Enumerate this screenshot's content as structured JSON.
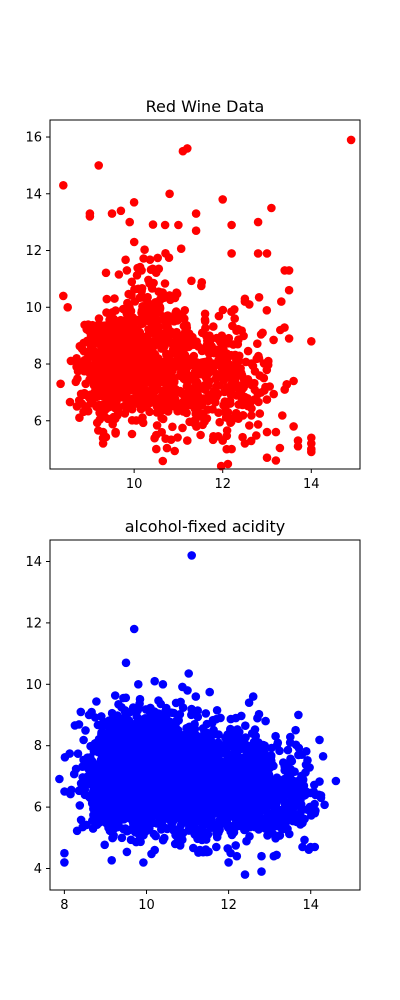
{
  "chart_data": [
    {
      "type": "scatter",
      "title": "Red Wine Data",
      "xlabel": "",
      "ylabel": "",
      "xlim": [
        8.1,
        15.1
      ],
      "ylim": [
        4.3,
        16.6
      ],
      "xticks": [
        10,
        12,
        14
      ],
      "yticks": [
        6,
        8,
        10,
        12,
        14,
        16
      ],
      "grid": false,
      "series": [
        {
          "color": "#ff0000",
          "seed": 7,
          "clusters": [
            {
              "cx": 9.6,
              "cy": 7.8,
              "sx": 0.42,
              "sy": 0.85,
              "n": 520
            },
            {
              "cx": 10.4,
              "cy": 9.1,
              "sx": 0.55,
              "sy": 1.25,
              "n": 280
            },
            {
              "cx": 11.1,
              "cy": 7.5,
              "sx": 0.75,
              "sy": 1.0,
              "n": 330
            },
            {
              "cx": 12.2,
              "cy": 7.4,
              "sx": 0.55,
              "sy": 1.15,
              "n": 170
            }
          ],
          "points": [
            [
              8.4,
              14.3
            ],
            [
              9.2,
              15.0
            ],
            [
              11.1,
              15.5
            ],
            [
              11.2,
              15.6
            ],
            [
              14.9,
              15.9
            ],
            [
              8.4,
              10.4
            ],
            [
              8.5,
              10.0
            ],
            [
              8.7,
              8.2
            ],
            [
              8.7,
              7.9
            ],
            [
              9.0,
              13.2
            ],
            [
              9.0,
              13.3
            ],
            [
              9.5,
              13.3
            ],
            [
              9.7,
              13.4
            ],
            [
              9.9,
              13.0
            ],
            [
              10.0,
              13.7
            ],
            [
              10.8,
              14.0
            ],
            [
              11.4,
              13.3
            ],
            [
              12.0,
              13.8
            ],
            [
              12.8,
              13.0
            ],
            [
              13.1,
              13.5
            ],
            [
              13.0,
              11.9
            ],
            [
              13.4,
              11.3
            ],
            [
              13.5,
              11.3
            ],
            [
              13.5,
              10.6
            ],
            [
              14.0,
              8.8
            ],
            [
              13.6,
              7.4
            ],
            [
              13.4,
              7.1
            ],
            [
              13.3,
              9.2
            ],
            [
              13.5,
              8.9
            ],
            [
              12.9,
              9.1
            ],
            [
              13.6,
              5.8
            ],
            [
              13.7,
              5.3
            ],
            [
              13.7,
              5.1
            ],
            [
              14.0,
              5.4
            ],
            [
              14.0,
              5.2
            ],
            [
              14.0,
              5.0
            ],
            [
              14.0,
              4.9
            ],
            [
              13.0,
              4.7
            ],
            [
              13.2,
              4.6
            ],
            [
              13.0,
              5.6
            ],
            [
              13.2,
              5.6
            ],
            [
              9.3,
              5.6
            ],
            [
              9.3,
              5.2
            ],
            [
              10.5,
              5.0
            ],
            [
              10.5,
              5.5
            ],
            [
              11.2,
              5.3
            ],
            [
              11.5,
              5.5
            ],
            [
              12.0,
              5.3
            ],
            [
              12.5,
              5.2
            ],
            [
              12.2,
              5.0
            ],
            [
              12.5,
              10.2
            ],
            [
              12.5,
              10.3
            ],
            [
              12.6,
              10.1
            ],
            [
              12.2,
              11.9
            ],
            [
              12.2,
              12.9
            ],
            [
              11.0,
              12.9
            ],
            [
              10.7,
              12.9
            ],
            [
              11.4,
              12.7
            ],
            [
              12.8,
              11.9
            ]
          ]
        }
      ]
    },
    {
      "type": "scatter",
      "title": "alcohol-fixed acidity",
      "xlabel": "",
      "ylabel": "",
      "xlim": [
        7.65,
        15.2
      ],
      "ylim": [
        3.3,
        14.7
      ],
      "xticks": [
        8,
        10,
        12,
        14
      ],
      "yticks": [
        4,
        6,
        8,
        10,
        12,
        14
      ],
      "grid": false,
      "series": [
        {
          "color": "#0000ff",
          "seed": 13,
          "clusters": [
            {
              "cx": 9.6,
              "cy": 6.9,
              "sx": 0.55,
              "sy": 0.8,
              "n": 1200
            },
            {
              "cx": 10.7,
              "cy": 6.9,
              "sx": 0.75,
              "sy": 0.85,
              "n": 1100
            },
            {
              "cx": 12.0,
              "cy": 6.8,
              "sx": 0.75,
              "sy": 0.8,
              "n": 900
            },
            {
              "cx": 10.0,
              "cy": 8.2,
              "sx": 0.5,
              "sy": 0.55,
              "n": 250
            },
            {
              "cx": 13.3,
              "cy": 6.3,
              "sx": 0.45,
              "sy": 0.6,
              "n": 180
            }
          ],
          "points": [
            [
              11.1,
              14.2
            ],
            [
              9.7,
              11.8
            ],
            [
              8.0,
              4.5
            ],
            [
              8.0,
              4.2
            ],
            [
              12.4,
              3.8
            ],
            [
              12.8,
              3.9
            ],
            [
              12.0,
              4.2
            ],
            [
              12.2,
              4.4
            ],
            [
              12.8,
              4.4
            ],
            [
              13.1,
              4.4
            ],
            [
              13.8,
              4.7
            ],
            [
              14.0,
              4.7
            ],
            [
              14.1,
              4.7
            ],
            [
              14.1,
              5.8
            ],
            [
              14.2,
              6.4
            ],
            [
              13.7,
              7.7
            ],
            [
              13.5,
              8.1
            ],
            [
              12.6,
              9.6
            ],
            [
              12.5,
              9.4
            ],
            [
              12.9,
              8.8
            ],
            [
              9.5,
              10.7
            ],
            [
              10.2,
              10.1
            ],
            [
              10.4,
              10.0
            ],
            [
              9.8,
              10.0
            ],
            [
              11.0,
              9.8
            ],
            [
              11.2,
              9.6
            ],
            [
              8.4,
              9.1
            ],
            [
              8.6,
              9.0
            ],
            [
              8.7,
              5.3
            ],
            [
              8.5,
              6.4
            ],
            [
              10.2,
              4.6
            ],
            [
              10.7,
              4.8
            ],
            [
              11.3,
              4.6
            ],
            [
              11.7,
              4.7
            ],
            [
              9.4,
              5.0
            ]
          ]
        }
      ]
    }
  ]
}
